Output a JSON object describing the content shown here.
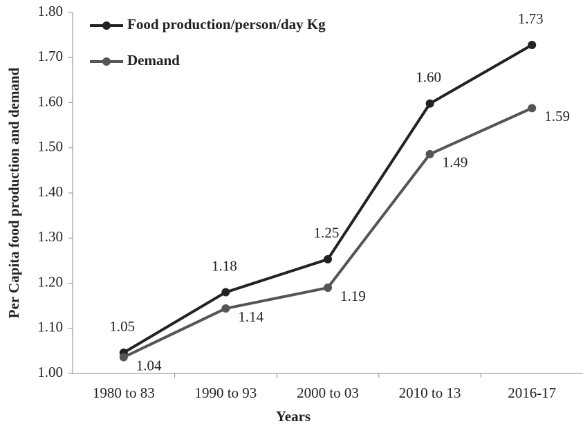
{
  "chart_data": {
    "type": "line",
    "x_label": "Years",
    "y_label": "Per Capita food production and demand",
    "categories": [
      "1980 to 83",
      "1990 to 93",
      "2000 to 03",
      "2010 to 13",
      "2016-17"
    ],
    "series": [
      {
        "name": "Food production/person/day Kg",
        "color": "#222222",
        "values": [
          1.046,
          1.18,
          1.253,
          1.598,
          1.728
        ],
        "value_labels": [
          "1.05",
          "1.18",
          "1.25",
          "1.60",
          "1.73"
        ]
      },
      {
        "name": "Demand",
        "color": "#555555",
        "values": [
          1.036,
          1.144,
          1.19,
          1.486,
          1.588
        ],
        "value_labels": [
          "1.04",
          "1.14",
          "1.19",
          "1.49",
          "1.59"
        ]
      }
    ],
    "ylim": [
      1.0,
      1.8
    ],
    "yticks": [
      {
        "value": 1.0,
        "label": "1.00"
      },
      {
        "value": 1.1,
        "label": "1.10"
      },
      {
        "value": 1.2,
        "label": "1.20"
      },
      {
        "value": 1.3,
        "label": "1.30"
      },
      {
        "value": 1.4,
        "label": "1.40"
      },
      {
        "value": 1.5,
        "label": "1.50"
      },
      {
        "value": 1.6,
        "label": "1.60"
      },
      {
        "value": 1.7,
        "label": "1.70"
      },
      {
        "value": 1.8,
        "label": "1.80"
      }
    ],
    "grid": false,
    "legend": "upper left"
  }
}
